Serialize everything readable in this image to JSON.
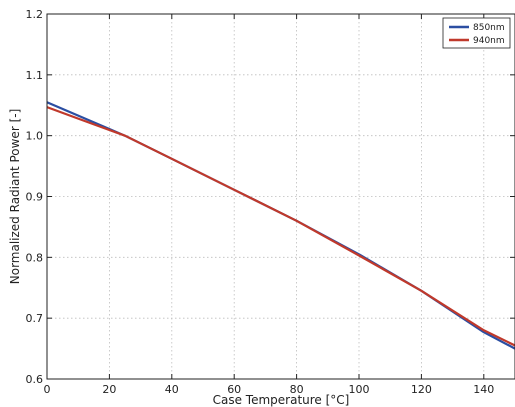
{
  "chart_data": {
    "type": "line",
    "xlabel": "Case Temperature [°C]",
    "ylabel": "Normalized Radiant Power [-]",
    "xlim": [
      0,
      150
    ],
    "ylim": [
      0.6,
      1.2
    ],
    "x_ticks": [
      "0",
      "20",
      "40",
      "60",
      "80",
      "100",
      "120",
      "140"
    ],
    "y_ticks": [
      "0.6",
      "0.7",
      "0.8",
      "0.9",
      "1.0",
      "1.1",
      "1.2"
    ],
    "grid": true,
    "legend_position": "top-right",
    "series": [
      {
        "name": "850nm",
        "color": "#2b4ea2",
        "points": [
          [
            0,
            1.055
          ],
          [
            10,
            1.033
          ],
          [
            25,
            1.0
          ],
          [
            40,
            0.962
          ],
          [
            60,
            0.911
          ],
          [
            80,
            0.86
          ],
          [
            100,
            0.805
          ],
          [
            120,
            0.745
          ],
          [
            140,
            0.677
          ],
          [
            150,
            0.65
          ]
        ]
      },
      {
        "name": "940nm",
        "color": "#c0392b",
        "points": [
          [
            0,
            1.047
          ],
          [
            10,
            1.028
          ],
          [
            25,
            1.0
          ],
          [
            40,
            0.962
          ],
          [
            60,
            0.911
          ],
          [
            80,
            0.86
          ],
          [
            100,
            0.803
          ],
          [
            120,
            0.745
          ],
          [
            140,
            0.68
          ],
          [
            150,
            0.655
          ]
        ]
      }
    ]
  }
}
